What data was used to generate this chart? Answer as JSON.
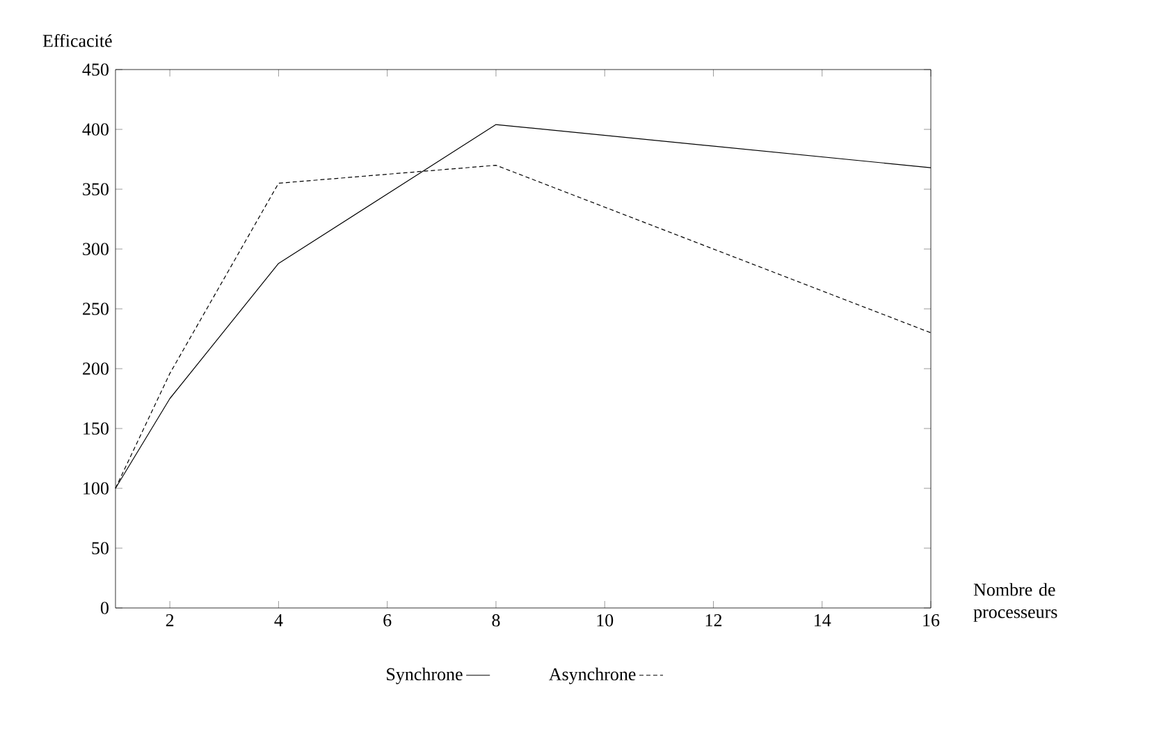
{
  "chart_data": {
    "type": "line",
    "xlabel": "Nombre de processeurs",
    "ylabel": "Efficacité",
    "x": [
      1,
      2,
      4,
      8,
      16
    ],
    "series": [
      {
        "name": "Synchrone",
        "color": "#000000",
        "line_style": "solid",
        "values": [
          100,
          175,
          288,
          404,
          368
        ]
      },
      {
        "name": "Asynchrone",
        "color": "#000000",
        "line_style": "dashed",
        "values": [
          100,
          196,
          355,
          370,
          230
        ]
      }
    ],
    "xlim": [
      1,
      16
    ],
    "xticks": [
      2,
      4,
      6,
      8,
      10,
      12,
      14,
      16
    ],
    "ylim": [
      0,
      450
    ],
    "yticks": [
      0,
      50,
      100,
      150,
      200,
      250,
      300,
      350,
      400,
      450
    ],
    "grid": false,
    "legend": "bottom",
    "marker": "none"
  }
}
